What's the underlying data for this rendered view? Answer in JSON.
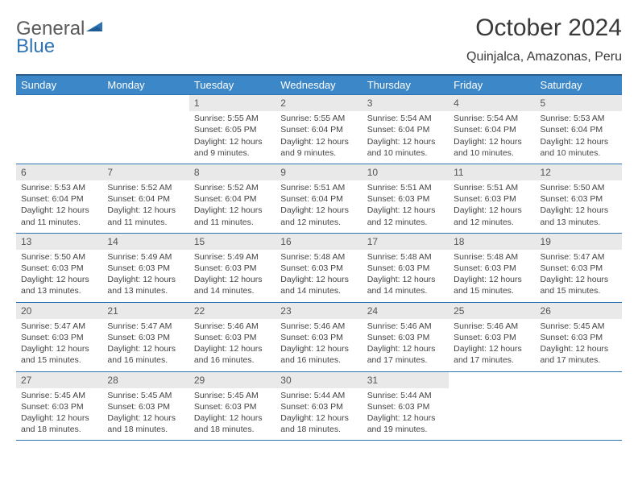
{
  "logo": {
    "word1": "General",
    "word2": "Blue"
  },
  "title": "October 2024",
  "location": "Quinjalca, Amazonas, Peru",
  "colors": {
    "header_bg": "#3c87c7",
    "header_border": "#2a5e8a",
    "cell_border": "#2e74b5",
    "daynum_bg": "#e9e9e9",
    "text": "#3a3a3a",
    "logo_gray": "#5a5a5a",
    "logo_blue": "#2e74b5"
  },
  "dayNames": [
    "Sunday",
    "Monday",
    "Tuesday",
    "Wednesday",
    "Thursday",
    "Friday",
    "Saturday"
  ],
  "weeks": [
    [
      {
        "n": "",
        "s": "",
        "e": "",
        "d": ""
      },
      {
        "n": "",
        "s": "",
        "e": "",
        "d": ""
      },
      {
        "n": "1",
        "s": "Sunrise: 5:55 AM",
        "e": "Sunset: 6:05 PM",
        "d": "Daylight: 12 hours and 9 minutes."
      },
      {
        "n": "2",
        "s": "Sunrise: 5:55 AM",
        "e": "Sunset: 6:04 PM",
        "d": "Daylight: 12 hours and 9 minutes."
      },
      {
        "n": "3",
        "s": "Sunrise: 5:54 AM",
        "e": "Sunset: 6:04 PM",
        "d": "Daylight: 12 hours and 10 minutes."
      },
      {
        "n": "4",
        "s": "Sunrise: 5:54 AM",
        "e": "Sunset: 6:04 PM",
        "d": "Daylight: 12 hours and 10 minutes."
      },
      {
        "n": "5",
        "s": "Sunrise: 5:53 AM",
        "e": "Sunset: 6:04 PM",
        "d": "Daylight: 12 hours and 10 minutes."
      }
    ],
    [
      {
        "n": "6",
        "s": "Sunrise: 5:53 AM",
        "e": "Sunset: 6:04 PM",
        "d": "Daylight: 12 hours and 11 minutes."
      },
      {
        "n": "7",
        "s": "Sunrise: 5:52 AM",
        "e": "Sunset: 6:04 PM",
        "d": "Daylight: 12 hours and 11 minutes."
      },
      {
        "n": "8",
        "s": "Sunrise: 5:52 AM",
        "e": "Sunset: 6:04 PM",
        "d": "Daylight: 12 hours and 11 minutes."
      },
      {
        "n": "9",
        "s": "Sunrise: 5:51 AM",
        "e": "Sunset: 6:04 PM",
        "d": "Daylight: 12 hours and 12 minutes."
      },
      {
        "n": "10",
        "s": "Sunrise: 5:51 AM",
        "e": "Sunset: 6:03 PM",
        "d": "Daylight: 12 hours and 12 minutes."
      },
      {
        "n": "11",
        "s": "Sunrise: 5:51 AM",
        "e": "Sunset: 6:03 PM",
        "d": "Daylight: 12 hours and 12 minutes."
      },
      {
        "n": "12",
        "s": "Sunrise: 5:50 AM",
        "e": "Sunset: 6:03 PM",
        "d": "Daylight: 12 hours and 13 minutes."
      }
    ],
    [
      {
        "n": "13",
        "s": "Sunrise: 5:50 AM",
        "e": "Sunset: 6:03 PM",
        "d": "Daylight: 12 hours and 13 minutes."
      },
      {
        "n": "14",
        "s": "Sunrise: 5:49 AM",
        "e": "Sunset: 6:03 PM",
        "d": "Daylight: 12 hours and 13 minutes."
      },
      {
        "n": "15",
        "s": "Sunrise: 5:49 AM",
        "e": "Sunset: 6:03 PM",
        "d": "Daylight: 12 hours and 14 minutes."
      },
      {
        "n": "16",
        "s": "Sunrise: 5:48 AM",
        "e": "Sunset: 6:03 PM",
        "d": "Daylight: 12 hours and 14 minutes."
      },
      {
        "n": "17",
        "s": "Sunrise: 5:48 AM",
        "e": "Sunset: 6:03 PM",
        "d": "Daylight: 12 hours and 14 minutes."
      },
      {
        "n": "18",
        "s": "Sunrise: 5:48 AM",
        "e": "Sunset: 6:03 PM",
        "d": "Daylight: 12 hours and 15 minutes."
      },
      {
        "n": "19",
        "s": "Sunrise: 5:47 AM",
        "e": "Sunset: 6:03 PM",
        "d": "Daylight: 12 hours and 15 minutes."
      }
    ],
    [
      {
        "n": "20",
        "s": "Sunrise: 5:47 AM",
        "e": "Sunset: 6:03 PM",
        "d": "Daylight: 12 hours and 15 minutes."
      },
      {
        "n": "21",
        "s": "Sunrise: 5:47 AM",
        "e": "Sunset: 6:03 PM",
        "d": "Daylight: 12 hours and 16 minutes."
      },
      {
        "n": "22",
        "s": "Sunrise: 5:46 AM",
        "e": "Sunset: 6:03 PM",
        "d": "Daylight: 12 hours and 16 minutes."
      },
      {
        "n": "23",
        "s": "Sunrise: 5:46 AM",
        "e": "Sunset: 6:03 PM",
        "d": "Daylight: 12 hours and 16 minutes."
      },
      {
        "n": "24",
        "s": "Sunrise: 5:46 AM",
        "e": "Sunset: 6:03 PM",
        "d": "Daylight: 12 hours and 17 minutes."
      },
      {
        "n": "25",
        "s": "Sunrise: 5:46 AM",
        "e": "Sunset: 6:03 PM",
        "d": "Daylight: 12 hours and 17 minutes."
      },
      {
        "n": "26",
        "s": "Sunrise: 5:45 AM",
        "e": "Sunset: 6:03 PM",
        "d": "Daylight: 12 hours and 17 minutes."
      }
    ],
    [
      {
        "n": "27",
        "s": "Sunrise: 5:45 AM",
        "e": "Sunset: 6:03 PM",
        "d": "Daylight: 12 hours and 18 minutes."
      },
      {
        "n": "28",
        "s": "Sunrise: 5:45 AM",
        "e": "Sunset: 6:03 PM",
        "d": "Daylight: 12 hours and 18 minutes."
      },
      {
        "n": "29",
        "s": "Sunrise: 5:45 AM",
        "e": "Sunset: 6:03 PM",
        "d": "Daylight: 12 hours and 18 minutes."
      },
      {
        "n": "30",
        "s": "Sunrise: 5:44 AM",
        "e": "Sunset: 6:03 PM",
        "d": "Daylight: 12 hours and 18 minutes."
      },
      {
        "n": "31",
        "s": "Sunrise: 5:44 AM",
        "e": "Sunset: 6:03 PM",
        "d": "Daylight: 12 hours and 19 minutes."
      },
      {
        "n": "",
        "s": "",
        "e": "",
        "d": ""
      },
      {
        "n": "",
        "s": "",
        "e": "",
        "d": ""
      }
    ]
  ]
}
